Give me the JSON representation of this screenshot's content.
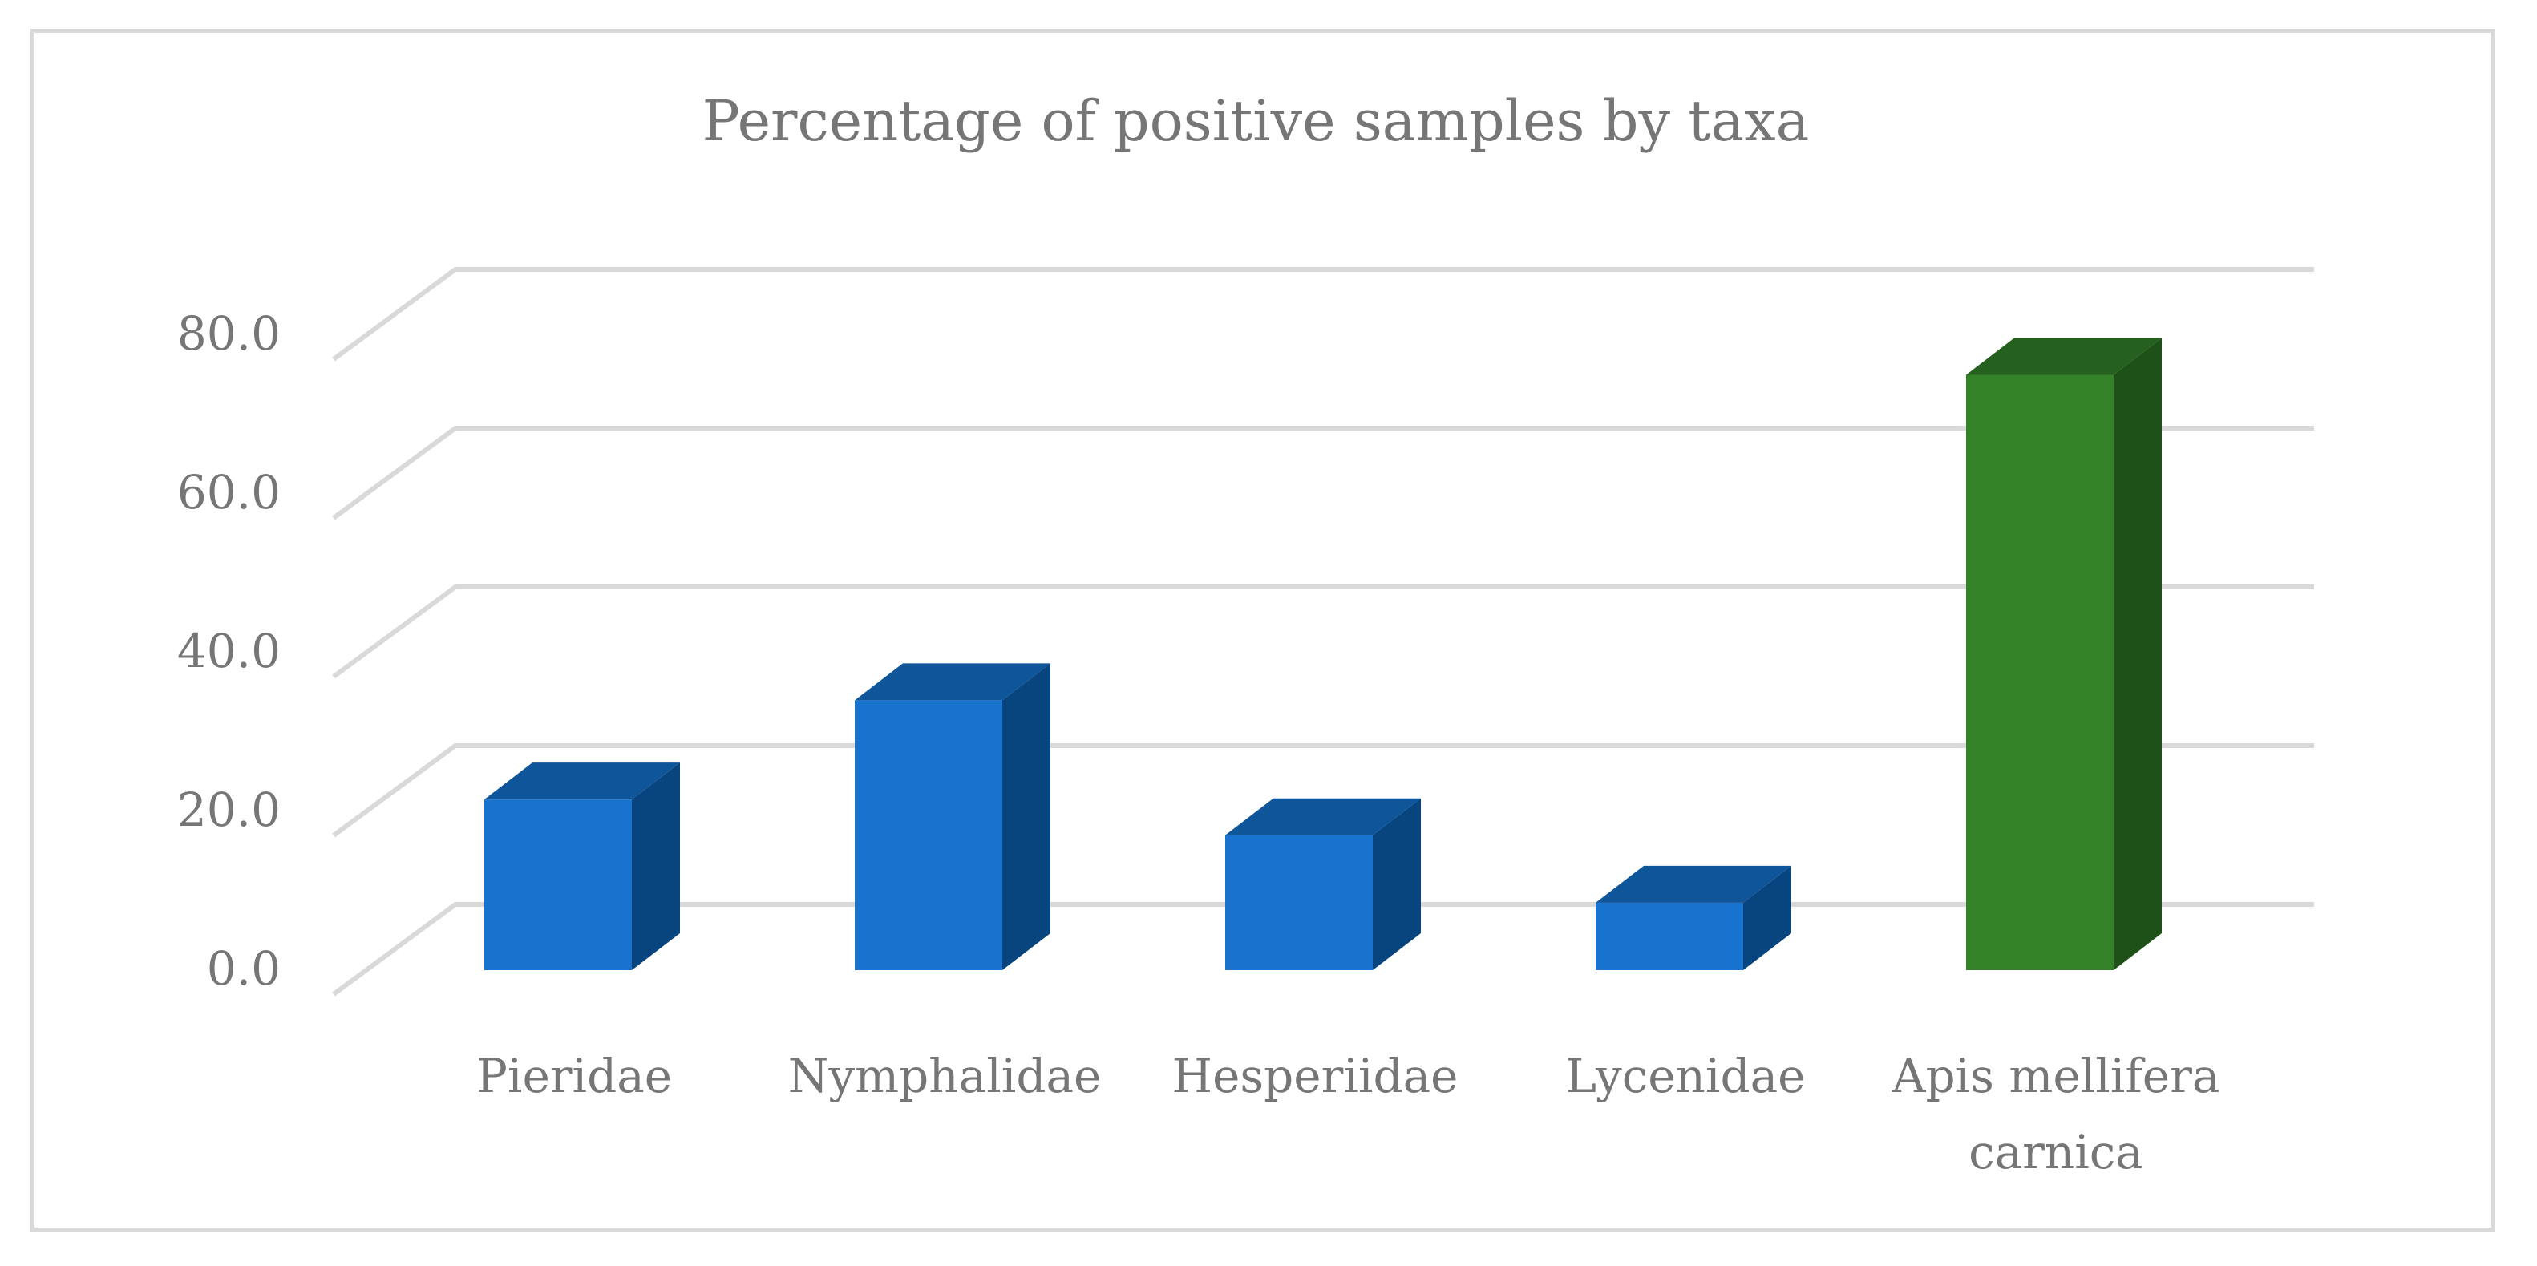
{
  "chart_data": {
    "type": "bar",
    "style": "3d-column",
    "title": "Percentage of positive samples by taxa",
    "categories": [
      [
        "Pieridae"
      ],
      [
        "Nymphalidae"
      ],
      [
        "Hesperiidae"
      ],
      [
        "Lycenidae"
      ],
      [
        "Apis mellifera",
        "carnica"
      ]
    ],
    "values": [
      21.5,
      34.0,
      17.0,
      8.5,
      75.0
    ],
    "colors": [
      "#1873ce",
      "#1873ce",
      "#1873ce",
      "#1873ce",
      "#338228"
    ],
    "side_colors": [
      "#08457f",
      "#08457f",
      "#08457f",
      "#08457f",
      "#1d5117"
    ],
    "top_colors": [
      "#0f559a",
      "#0f559a",
      "#0f559a",
      "#0f559a",
      "#25601f"
    ],
    "ylim": [
      0,
      80
    ],
    "yticks": [
      "0.0",
      "20.0",
      "40.0",
      "60.0",
      "80.0"
    ],
    "grid": true,
    "xlabel": "",
    "ylabel": ""
  }
}
